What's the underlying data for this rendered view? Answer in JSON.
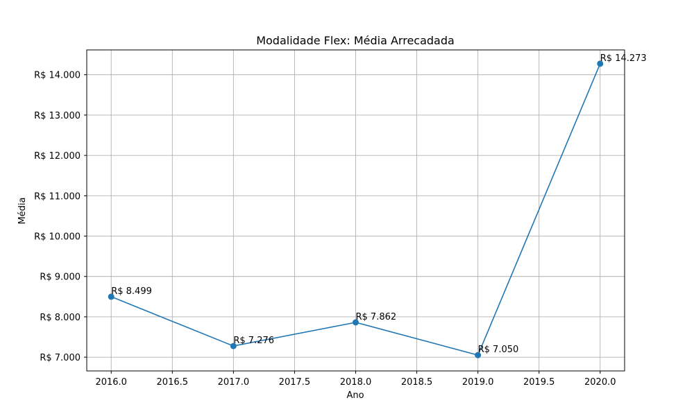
{
  "chart_data": {
    "type": "line",
    "title": "Modalidade Flex: Média Arrecadada",
    "xlabel": "Ano",
    "ylabel": "Média",
    "x": [
      2016,
      2017,
      2018,
      2019,
      2020
    ],
    "series": [
      {
        "values": [
          8499,
          7276,
          7862,
          7050,
          14273
        ],
        "data_labels": [
          "R$ 8.499",
          "R$ 7.276",
          "R$ 7.862",
          "R$ 7.050",
          "R$ 14.273"
        ],
        "color": "#1f77b4"
      }
    ],
    "xlim": [
      2015.8,
      2020.2
    ],
    "ylim": [
      6658.85,
      14614.15
    ],
    "x_ticks": [
      2016.0,
      2016.5,
      2017.0,
      2017.5,
      2018.0,
      2018.5,
      2019.0,
      2019.5,
      2020.0
    ],
    "x_tick_labels": [
      "2016.0",
      "2016.5",
      "2017.0",
      "2017.5",
      "2018.0",
      "2018.5",
      "2019.0",
      "2019.5",
      "2020.0"
    ],
    "y_ticks": [
      7000,
      8000,
      9000,
      10000,
      11000,
      12000,
      13000,
      14000
    ],
    "y_tick_labels": [
      "R$ 7.000",
      "R$ 8.000",
      "R$ 9.000",
      "R$ 10.000",
      "R$ 11.000",
      "R$ 12.000",
      "R$ 13.000",
      "R$ 14.000"
    ],
    "grid": true
  }
}
